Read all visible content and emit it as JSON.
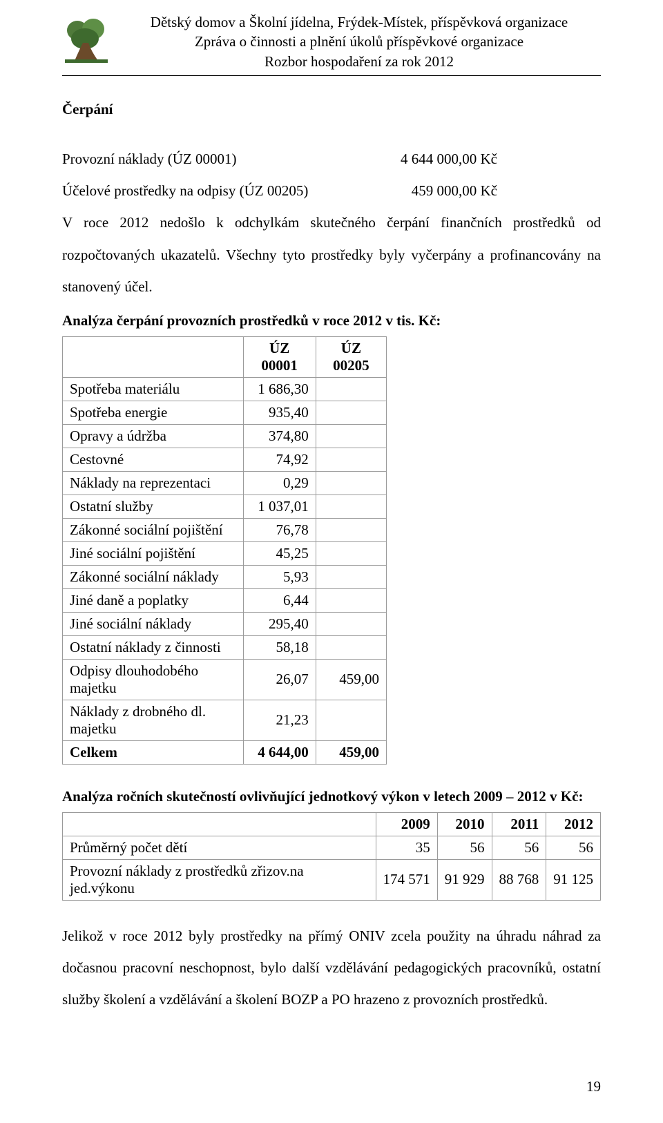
{
  "header": {
    "line1": "Dětský domov a Školní jídelna, Frýdek-Místek, příspěvková organizace",
    "line2": "Zpráva o činnosti a plnění úkolů příspěvkové organizace",
    "line3": "Rozbor hospodaření za rok 2012"
  },
  "section_title": "Čerpání",
  "kv": {
    "row1_label": "Provozní náklady (ÚZ 00001)",
    "row1_value": "4 644 000,00 Kč",
    "row2_label": "Účelové prostředky na odpisy (ÚZ 00205)",
    "row2_value": "459 000,00 Kč"
  },
  "para1": "V roce 2012 nedošlo k odchylkám skutečného čerpání finančních prostředků od rozpočtovaných ukazatelů. Všechny tyto prostředky byly vyčerpány a profinancovány na stanovený účel.",
  "t1_heading": "Analýza čerpání provozních prostředků v roce 2012 v tis. Kč:",
  "t1": {
    "col1": "ÚZ 00001",
    "col2": "ÚZ 00205",
    "rows": [
      {
        "label": "Spotřeba materiálu",
        "c1": "1 686,30",
        "c2": ""
      },
      {
        "label": "Spotřeba energie",
        "c1": "935,40",
        "c2": ""
      },
      {
        "label": "Opravy a údržba",
        "c1": "374,80",
        "c2": ""
      },
      {
        "label": "Cestovné",
        "c1": "74,92",
        "c2": ""
      },
      {
        "label": "Náklady na reprezentaci",
        "c1": "0,29",
        "c2": ""
      },
      {
        "label": "Ostatní služby",
        "c1": "1 037,01",
        "c2": ""
      },
      {
        "label": "Zákonné sociální pojištění",
        "c1": "76,78",
        "c2": ""
      },
      {
        "label": "Jiné sociální pojištění",
        "c1": "45,25",
        "c2": ""
      },
      {
        "label": "Zákonné sociální náklady",
        "c1": "5,93",
        "c2": ""
      },
      {
        "label": "Jiné daně a poplatky",
        "c1": "6,44",
        "c2": ""
      },
      {
        "label": "Jiné sociální náklady",
        "c1": "295,40",
        "c2": ""
      },
      {
        "label": "Ostatní náklady z činnosti",
        "c1": "58,18",
        "c2": ""
      },
      {
        "label": "Odpisy dlouhodobého majetku",
        "c1": "26,07",
        "c2": "459,00"
      },
      {
        "label": "Náklady z drobného dl. majetku",
        "c1": "21,23",
        "c2": ""
      }
    ],
    "total_label": "Celkem",
    "total_c1": "4 644,00",
    "total_c2": "459,00"
  },
  "t2_heading": "Analýza ročních skutečností ovlivňující jednotkový výkon v letech 2009 – 2012 v Kč:",
  "t2": {
    "years": [
      "2009",
      "2010",
      "2011",
      "2012"
    ],
    "rows": [
      {
        "label": "Průměrný počet dětí",
        "vals": [
          "35",
          "56",
          "56",
          "56"
        ]
      },
      {
        "label": "Provozní náklady z prostředků zřizov.na jed.výkonu",
        "vals": [
          "174 571",
          "91 929",
          "88 768",
          "91 125"
        ]
      }
    ]
  },
  "para2": "Jelikož v roce 2012 byly prostředky na přímý ONIV zcela použity na úhradu náhrad za dočasnou pracovní neschopnost, bylo další vzdělávání pedagogických pracovníků, ostatní služby školení a vzdělávání a školení BOZP a PO hrazeno z provozních prostředků.",
  "page_number": "19"
}
